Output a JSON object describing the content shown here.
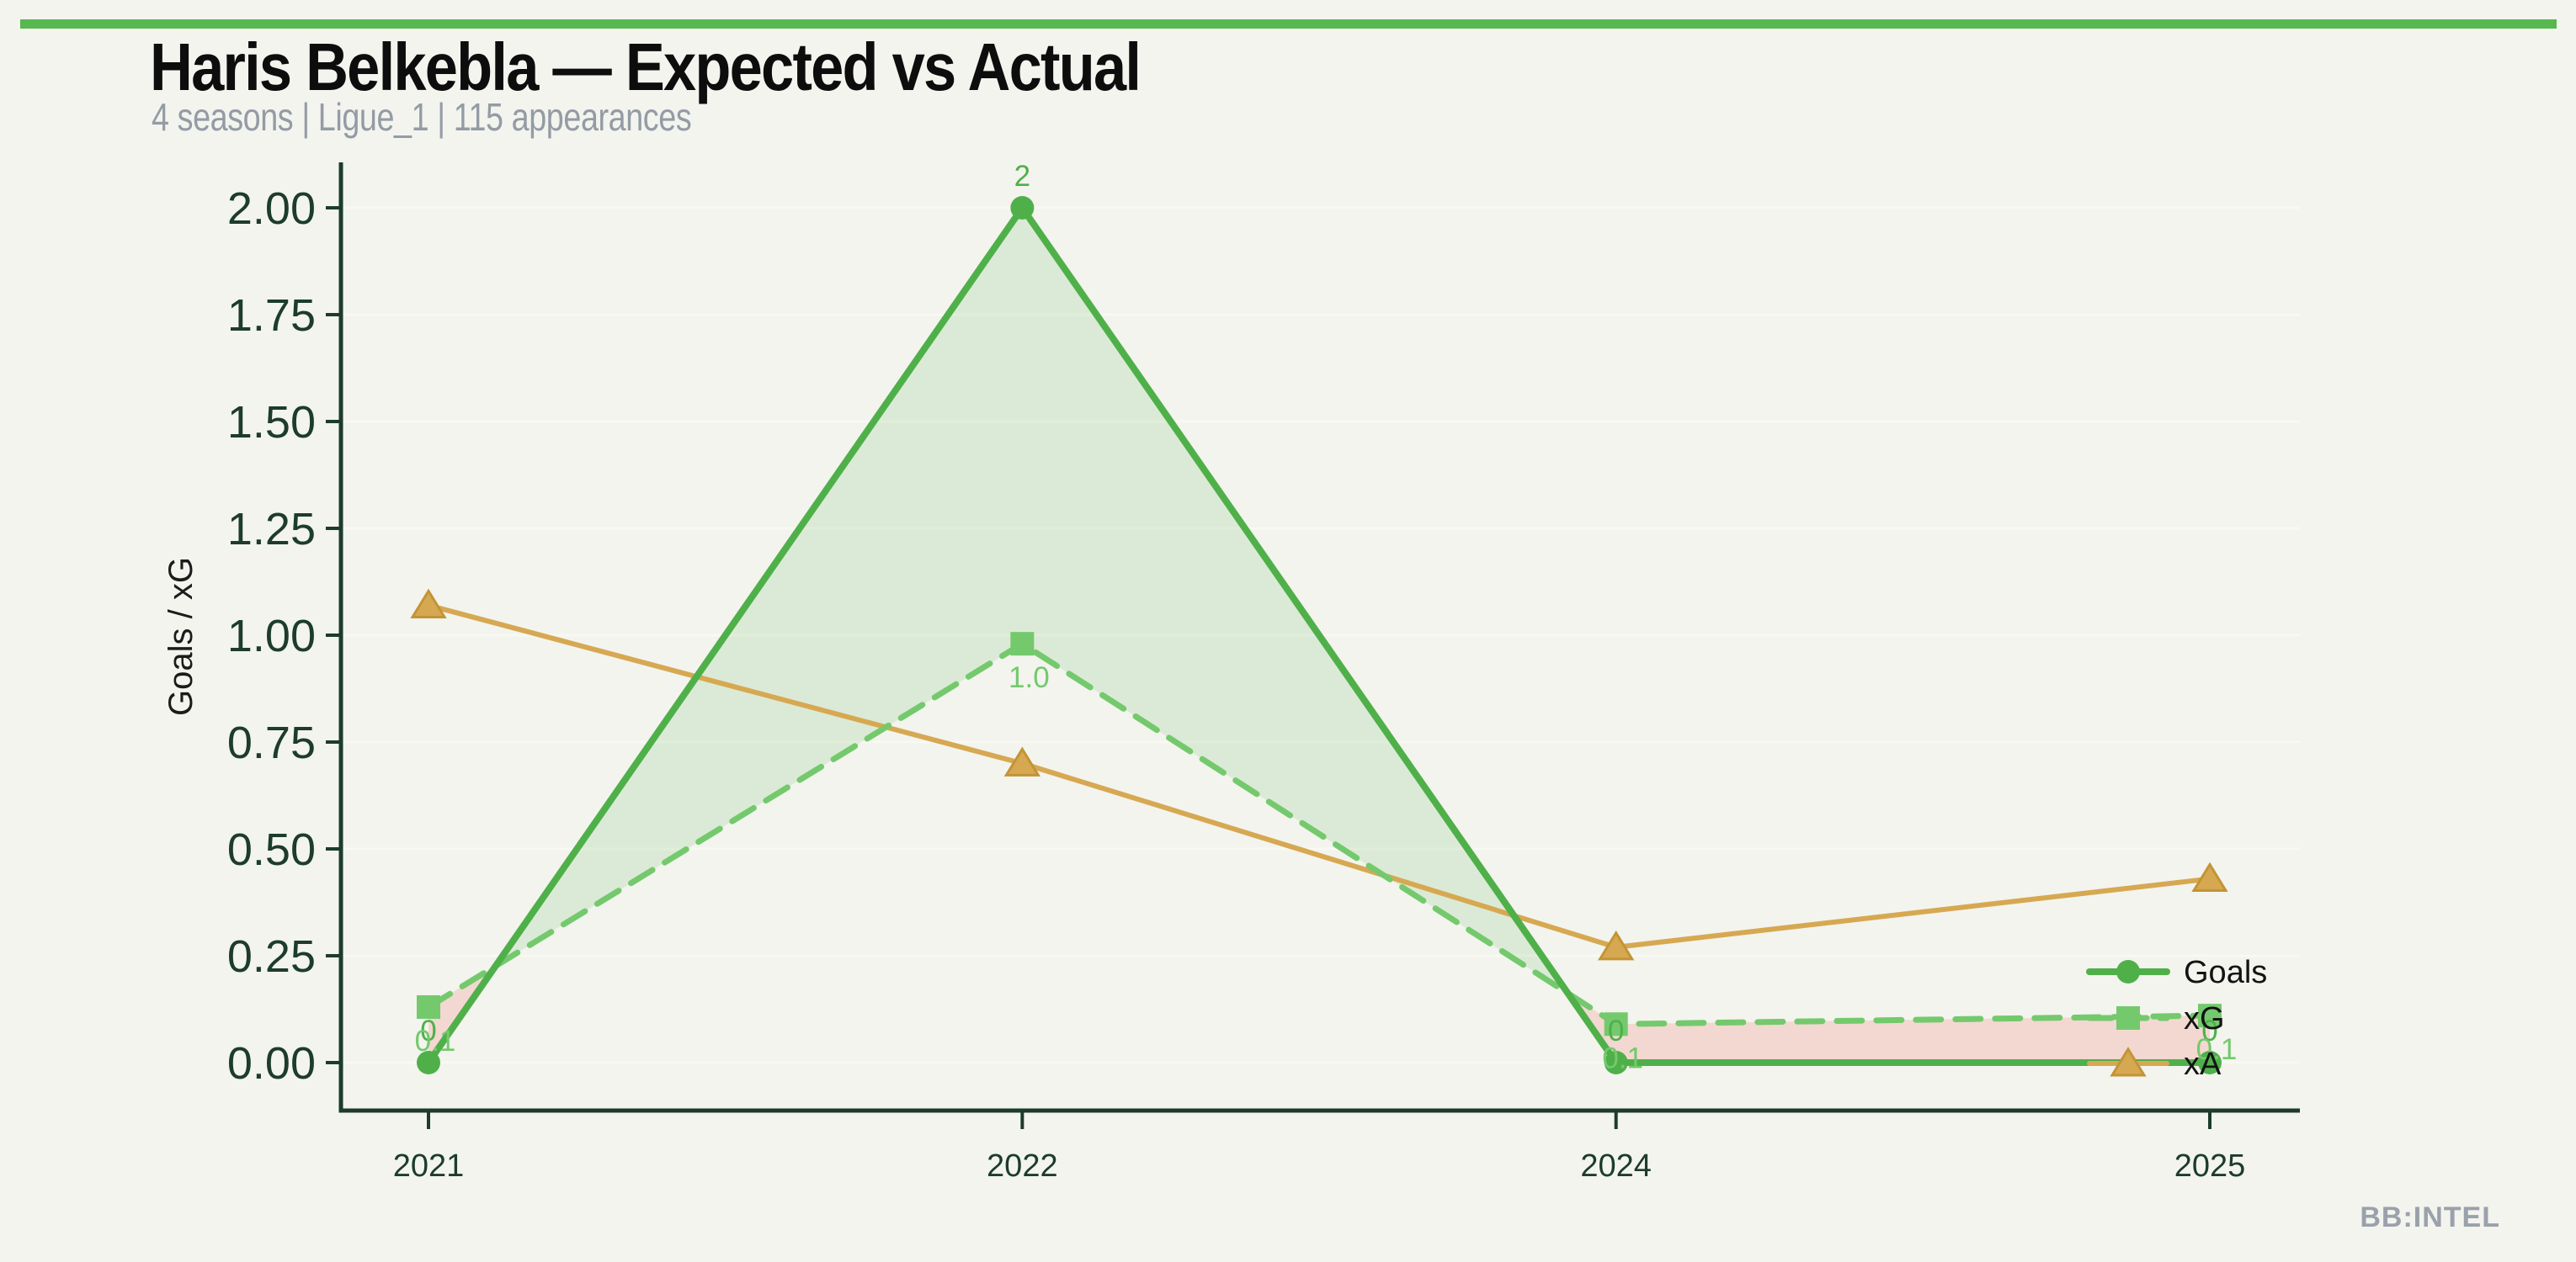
{
  "page": {
    "background": "#f3f4ee",
    "accent_bar_color": "#56b84f",
    "watermark": "BB:INTEL"
  },
  "header": {
    "title": "Haris Belkebla — Expected vs Actual",
    "subtitle": "4 seasons | Ligue_1 | 115 appearances"
  },
  "chart_data": {
    "type": "line",
    "title": "Haris Belkebla — Expected vs Actual",
    "subtitle": "4 seasons | Ligue_1 | 115 appearances",
    "categories": [
      "2021",
      "2022",
      "2024",
      "2025"
    ],
    "series": [
      {
        "name": "Goals",
        "values": [
          0,
          2,
          0,
          0
        ],
        "labels": [
          "0",
          "2",
          "0",
          "0"
        ],
        "label_placement": "above",
        "color": "#4fb04a",
        "line_style": "solid",
        "marker": "circle"
      },
      {
        "name": "xG",
        "values": [
          0.13,
          0.98,
          0.09,
          0.11
        ],
        "labels": [
          "0.1",
          "1.0",
          "0.1",
          "0.1"
        ],
        "label_placement": "below",
        "color": "#74c96d",
        "line_style": "dashed",
        "marker": "square"
      },
      {
        "name": "xA",
        "values": [
          1.07,
          0.7,
          0.27,
          0.43
        ],
        "labels": [],
        "label_placement": "none",
        "color": "#d7a852",
        "line_style": "solid",
        "marker": "triangle"
      }
    ],
    "fill_between": {
      "between": [
        "Goals",
        "xG"
      ],
      "color_when_goals_above": "rgba(79,176,74,0.14)",
      "color_when_xg_above": "rgba(240,105,90,0.20)"
    },
    "xlabel": "",
    "ylabel": "Goals / xG",
    "ylim": [
      0,
      2
    ],
    "yticks": [
      0,
      0.25,
      0.5,
      0.75,
      1.0,
      1.25,
      1.5,
      1.75,
      2.0
    ],
    "ytick_labels": [
      "0.00",
      "0.25",
      "0.50",
      "0.75",
      "1.00",
      "1.25",
      "1.50",
      "1.75",
      "2.00"
    ],
    "grid": "horizontal-faint",
    "grid_color": "#f8f9f2",
    "axis_color": "#1d3c2a",
    "ylabel_color": "#1b1b1b",
    "legend": {
      "position": "lower-right-inside",
      "entries": [
        "Goals",
        "xG",
        "xA"
      ],
      "text_color": "#131313"
    }
  }
}
